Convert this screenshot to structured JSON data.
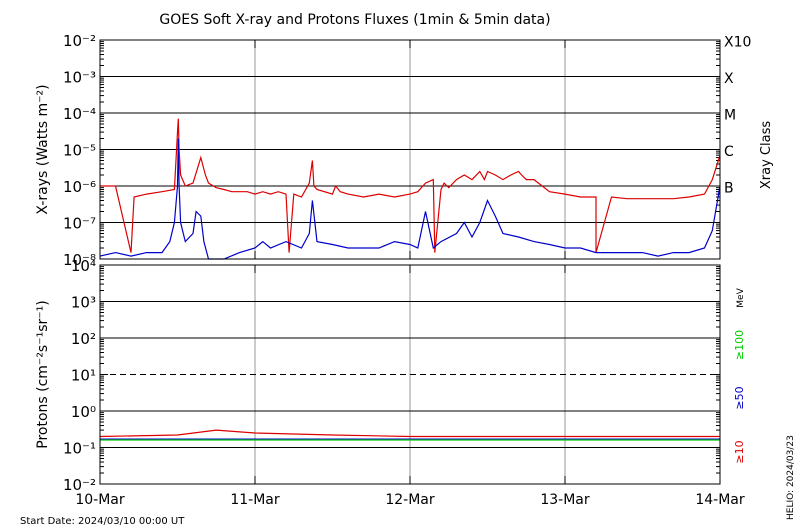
{
  "title": "GOES Soft X-ray and Protons Fluxes   (1min & 5min data)",
  "footer": {
    "start_date": "Start Date: 2024/03/10 00:00 UT",
    "helio": "HELIO: 2024/03/23"
  },
  "colors": {
    "xray_long": "#dd0000",
    "xray_short": "#0000cc",
    "protons_10": "#dd0000",
    "protons_50": "#0000cc",
    "protons_100": "#00cc00",
    "grid": "#000000",
    "day_lines": "#999999"
  },
  "chart_data": [
    {
      "type": "line",
      "panel": "xray",
      "ylabel": "X-rays (Watts m⁻²)",
      "y_scale": "log",
      "ylim": [
        1e-08,
        0.01
      ],
      "ytick_labels": [
        "10⁻²",
        "10⁻³",
        "10⁻⁴",
        "10⁻⁵",
        "10⁻⁶",
        "10⁻⁷",
        "10⁻⁸"
      ],
      "right_label": "Xray Class",
      "class_labels": [
        {
          "text": "X10",
          "value": 0.001
        },
        {
          "text": "X",
          "value": 0.0001
        },
        {
          "text": "M",
          "value": 1e-05
        },
        {
          "text": "C",
          "value": 1e-06
        },
        {
          "text": "B",
          "value": 1e-07
        }
      ],
      "x_unit": "days since 2024-03-10 00:00 UT",
      "xlim": [
        0,
        4
      ],
      "grid": "horizontal at each decade; vertical at each day",
      "series": [
        {
          "color": "#dd0000",
          "x": [
            0,
            0.05,
            0.1,
            0.2,
            0.22,
            0.3,
            0.4,
            0.48,
            0.5,
            0.505,
            0.51,
            0.52,
            0.55,
            0.6,
            0.65,
            0.68,
            0.7,
            0.75,
            0.8,
            0.85,
            0.9,
            0.95,
            1,
            1.05,
            1.1,
            1.15,
            1.2,
            1.22,
            1.25,
            1.3,
            1.35,
            1.37,
            1.38,
            1.4,
            1.5,
            1.52,
            1.55,
            1.6,
            1.7,
            1.8,
            1.9,
            2.0,
            2.05,
            2.1,
            2.15,
            2.16,
            2.2,
            2.22,
            2.25,
            2.3,
            2.35,
            2.4,
            2.45,
            2.48,
            2.5,
            2.55,
            2.6,
            2.65,
            2.7,
            2.72,
            2.75,
            2.8,
            2.9,
            3.0,
            3.1,
            3.2,
            3.2,
            3.3,
            3.4,
            3.5,
            3.6,
            3.7,
            3.8,
            3.9,
            3.95,
            4.0
          ],
          "y": [
            1e-06,
            1e-06,
            1e-06,
            1.5e-08,
            5e-07,
            6e-07,
            7e-07,
            8e-07,
            3e-05,
            7e-05,
            1e-05,
            2e-06,
            1e-06,
            1.2e-06,
            6e-06,
            2e-06,
            1.2e-06,
            9e-07,
            8e-07,
            7e-07,
            7e-07,
            7e-07,
            6e-07,
            7e-07,
            6e-07,
            7e-07,
            6e-07,
            1.5e-08,
            6e-07,
            5e-07,
            1.2e-06,
            5e-06,
            1e-06,
            8e-07,
            6e-07,
            1e-06,
            7e-07,
            6e-07,
            5e-07,
            6e-07,
            5e-07,
            6e-07,
            7e-07,
            1.2e-06,
            1.5e-06,
            1.5e-08,
            8e-07,
            1.2e-06,
            9e-07,
            1.5e-06,
            2e-06,
            1.5e-06,
            2.5e-06,
            1.5e-06,
            2.5e-06,
            2e-06,
            1.5e-06,
            2e-06,
            2.5e-06,
            2e-06,
            1.5e-06,
            1.5e-06,
            7e-07,
            6e-07,
            5e-07,
            5e-07,
            1.5e-08,
            5e-07,
            4.5e-07,
            4.5e-07,
            4.5e-07,
            4.5e-07,
            5e-07,
            6e-07,
            1.5e-06,
            7e-06
          ]
        },
        {
          "color": "#0000cc",
          "x": [
            0,
            0.1,
            0.2,
            0.3,
            0.4,
            0.45,
            0.48,
            0.5,
            0.505,
            0.51,
            0.52,
            0.55,
            0.6,
            0.62,
            0.65,
            0.67,
            0.7,
            0.8,
            0.9,
            1,
            1.05,
            1.1,
            1.2,
            1.3,
            1.35,
            1.37,
            1.4,
            1.5,
            1.6,
            1.7,
            1.8,
            1.9,
            2.0,
            2.05,
            2.1,
            2.15,
            2.2,
            2.3,
            2.35,
            2.4,
            2.45,
            2.5,
            2.55,
            2.6,
            2.7,
            2.8,
            2.9,
            3.0,
            3.1,
            3.2,
            3.3,
            3.4,
            3.5,
            3.6,
            3.7,
            3.8,
            3.9,
            3.95,
            4.0
          ],
          "y": [
            1.2e-08,
            1.5e-08,
            1.2e-08,
            1.5e-08,
            1.5e-08,
            3e-08,
            1e-07,
            1e-06,
            2e-05,
            1e-06,
            1e-07,
            3e-08,
            5e-08,
            2e-07,
            1.5e-07,
            3e-08,
            1e-08,
            1e-08,
            1.5e-08,
            2e-08,
            3e-08,
            2e-08,
            3e-08,
            2e-08,
            5e-08,
            4e-07,
            3e-08,
            2.5e-08,
            2e-08,
            2e-08,
            2e-08,
            3e-08,
            2.5e-08,
            2e-08,
            2e-07,
            2e-08,
            3e-08,
            5e-08,
            1e-07,
            4e-08,
            1e-07,
            4e-07,
            1.5e-07,
            5e-08,
            4e-08,
            3e-08,
            2.5e-08,
            2e-08,
            2e-08,
            1.5e-08,
            1.5e-08,
            1.5e-08,
            1.5e-08,
            1.2e-08,
            1.5e-08,
            1.5e-08,
            2e-08,
            6e-08,
            1e-06
          ]
        }
      ]
    },
    {
      "type": "line",
      "panel": "protons",
      "ylabel": "Protons (cm⁻²s⁻¹sr⁻¹)",
      "y_scale": "log",
      "ylim": [
        0.01,
        10000
      ],
      "ytick_labels": [
        "10⁴",
        "10³",
        "10²",
        "10¹",
        "10⁰",
        "10⁻¹",
        "10⁻²"
      ],
      "threshold": {
        "value": 10,
        "style": "dashed"
      },
      "right_labels": [
        {
          "text": "MeV",
          "color": "#000000"
        },
        {
          "text": "≥100",
          "color": "#00cc00"
        },
        {
          "text": "≥50",
          "color": "#0000cc"
        },
        {
          "text": "≥10",
          "color": "#dd0000"
        }
      ],
      "x_categories": [
        "10-Mar",
        "11-Mar",
        "12-Mar",
        "13-Mar",
        "14-Mar"
      ],
      "xlim": [
        0,
        4
      ],
      "series": [
        {
          "color": "#dd0000",
          "x": [
            0,
            0.5,
            0.75,
            1.0,
            1.5,
            2.0,
            3.0,
            4.0
          ],
          "y": [
            0.2,
            0.22,
            0.3,
            0.25,
            0.22,
            0.2,
            0.2,
            0.2
          ]
        },
        {
          "color": "#0000cc",
          "x": [
            0,
            1,
            2,
            3,
            4
          ],
          "y": [
            0.17,
            0.17,
            0.17,
            0.17,
            0.17
          ]
        },
        {
          "color": "#00cc00",
          "x": [
            0,
            1,
            2,
            3,
            4
          ],
          "y": [
            0.16,
            0.16,
            0.16,
            0.16,
            0.16
          ]
        }
      ]
    }
  ]
}
